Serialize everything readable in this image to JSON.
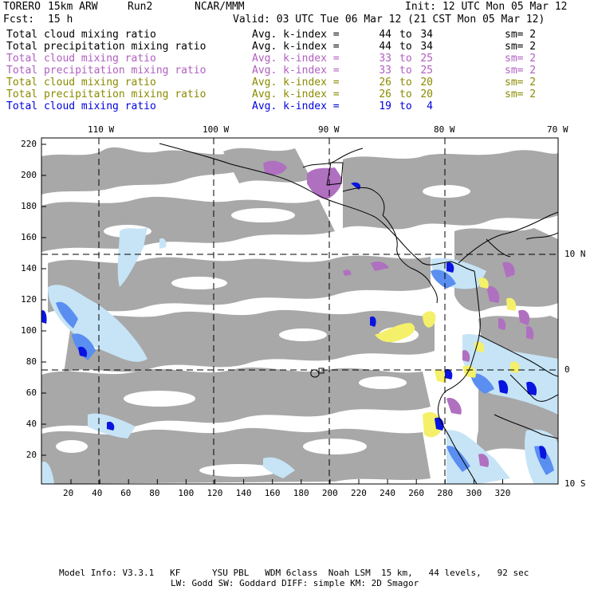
{
  "header": {
    "model_name": "TORERO",
    "resolution": "15km ARW",
    "run": "Run2",
    "org": "NCAR/MMM",
    "init_label": "Init: 12 UTC Mon 05 Mar 12",
    "fcst_label": "Fcst:",
    "fcst_value": "15 h",
    "valid_label": "Valid: 03 UTC Tue 06 Mar 12 (21 CST Mon 05 Mar 12)"
  },
  "legend": [
    {
      "field": "Total cloud mixing ratio",
      "kindex": "Avg. k-index =",
      "from": "44",
      "to": "to",
      "to_val": "34",
      "sm": "sm= 2",
      "color": "#000000"
    },
    {
      "field": "Total precipitation mixing ratio",
      "kindex": "Avg. k-index =",
      "from": "44",
      "to": "to",
      "to_val": "34",
      "sm": "sm= 2",
      "color": "#000000"
    },
    {
      "field": "Total cloud mixing ratio",
      "kindex": "Avg. k-index =",
      "from": "33",
      "to": "to",
      "to_val": "25",
      "sm": "sm= 2",
      "color": "#b05fc0"
    },
    {
      "field": "Total precipitation mixing ratio",
      "kindex": "Avg. k-index =",
      "from": "33",
      "to": "to",
      "to_val": "25",
      "sm": "sm= 2",
      "color": "#b05fc0"
    },
    {
      "field": "Total cloud mixing ratio",
      "kindex": "Avg. k-index =",
      "from": "26",
      "to": "to",
      "to_val": "20",
      "sm": "sm= 2",
      "color": "#8a8a00"
    },
    {
      "field": "Total precipitation mixing ratio",
      "kindex": "Avg. k-index =",
      "from": "26",
      "to": "to",
      "to_val": "20",
      "sm": "sm= 2",
      "color": "#8a8a00"
    },
    {
      "field": "Total cloud mixing ratio",
      "kindex": "Avg. k-index =",
      "from": "19",
      "to": "to",
      "to_val": "4",
      "sm": "",
      "color": "#0000e0"
    }
  ],
  "axes": {
    "top_lon_labels": [
      "110 W",
      "100 W",
      "90 W",
      "80 W",
      "70 W"
    ],
    "right_lat_labels": [
      "10 N",
      "0",
      "10 S"
    ],
    "left_y_ticks": [
      "220",
      "200",
      "180",
      "160",
      "140",
      "120",
      "100",
      "80",
      "60",
      "40",
      "20"
    ],
    "bottom_x_ticks": [
      "20",
      "40",
      "60",
      "80",
      "100",
      "120",
      "140",
      "160",
      "180",
      "200",
      "220",
      "240",
      "260",
      "280",
      "300",
      "320"
    ]
  },
  "colors": {
    "cloud_gray": "#a8a8a8",
    "purple": "#b070c0",
    "yellow": "#f4f06a",
    "light_blue": "#c6e4f6",
    "mid_blue": "#5a8ef0",
    "dark_blue": "#0a14e0",
    "coast": "#000000"
  },
  "footer": {
    "line1": "Model Info: V3.3.1   KF      YSU PBL   WDM 6class  Noah LSM  15 km,   44 levels,   92 sec",
    "line2": "LW: Godd SW: Goddard DIFF: simple KM: 2D Smagor"
  }
}
